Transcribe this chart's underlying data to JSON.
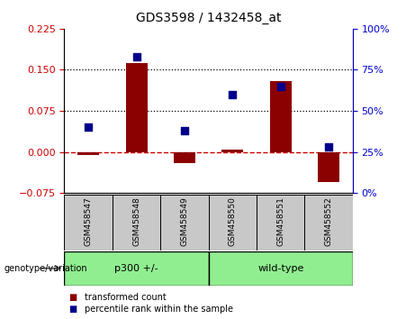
{
  "title": "GDS3598 / 1432458_at",
  "samples": [
    "GSM458547",
    "GSM458548",
    "GSM458549",
    "GSM458550",
    "GSM458551",
    "GSM458552"
  ],
  "bar_values": [
    -0.005,
    0.162,
    -0.02,
    0.005,
    0.13,
    -0.055
  ],
  "percentile_values": [
    40,
    83,
    38,
    60,
    65,
    28
  ],
  "ylim_left": [
    -0.075,
    0.225
  ],
  "ylim_right": [
    0,
    100
  ],
  "yticks_left": [
    -0.075,
    0,
    0.075,
    0.15,
    0.225
  ],
  "yticks_right": [
    0,
    25,
    50,
    75,
    100
  ],
  "hlines": [
    0.075,
    0.15
  ],
  "bar_color": "#8B0000",
  "point_color": "#00008B",
  "zero_line_color": "#CC0000",
  "groups": [
    {
      "label": "p300 +/-",
      "indices": [
        0,
        1,
        2
      ],
      "color": "#90EE90"
    },
    {
      "label": "wild-type",
      "indices": [
        3,
        4,
        5
      ],
      "color": "#90EE90"
    }
  ],
  "group_label_prefix": "genotype/variation",
  "legend_bar_label": "transformed count",
  "legend_point_label": "percentile rank within the sample",
  "tick_label_color_left": "#CC0000",
  "tick_label_color_right": "#0000CC",
  "sample_box_color": "#C8C8C8",
  "plot_bg": "#FFFFFF"
}
